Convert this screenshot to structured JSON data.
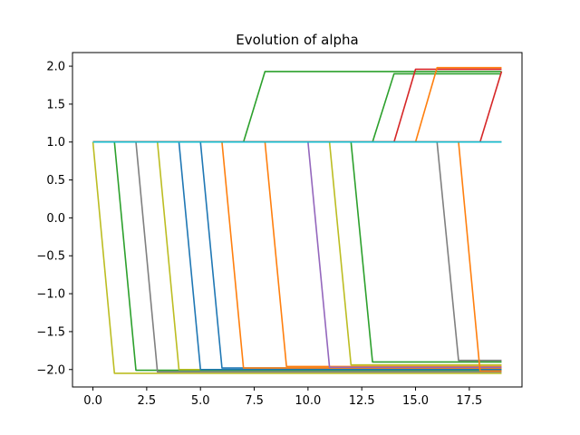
{
  "chart_data": {
    "type": "line",
    "title": "Evolution of alpha",
    "xlabel": "",
    "ylabel": "",
    "xlim": [
      -0.95,
      19.95
    ],
    "ylim": [
      -2.23,
      2.18
    ],
    "xticks": [
      0.0,
      2.5,
      5.0,
      7.5,
      10.0,
      12.5,
      15.0,
      17.5
    ],
    "xtick_labels": [
      "0.0",
      "2.5",
      "5.0",
      "7.5",
      "10.0",
      "12.5",
      "15.0",
      "17.5"
    ],
    "yticks": [
      2.0,
      1.5,
      1.0,
      0.5,
      0.0,
      -0.5,
      -1.0,
      -1.5,
      -2.0
    ],
    "ytick_labels": [
      "2.0",
      "1.5",
      "1.0",
      "0.5",
      "0.0",
      "−0.5",
      "−1.0",
      "−1.5",
      "−2.0"
    ],
    "grid": false,
    "x": [
      0,
      1,
      2,
      3,
      4,
      5,
      6,
      7,
      8,
      9,
      10,
      11,
      12,
      13,
      14,
      15,
      16,
      17,
      18,
      19
    ],
    "series": [
      {
        "color": "#bcbd22",
        "values": [
          1,
          -2.05,
          -2.05,
          -2.05,
          -2.05,
          -2.05,
          -2.05,
          -2.05,
          -2.05,
          -2.05,
          -2.05,
          -2.05,
          -2.05,
          -2.05,
          -2.05,
          -2.05,
          -2.05,
          -2.05,
          -2.05,
          -2.05
        ]
      },
      {
        "color": "#2ca02c",
        "values": [
          1,
          1,
          -2.01,
          -2.01,
          -2.01,
          -2.01,
          -2.01,
          -2.01,
          -2.01,
          -2.01,
          -2.01,
          -2.01,
          -2.01,
          -2.01,
          -2.01,
          -2.01,
          -2.01,
          -2.01,
          -2.01,
          -2.01
        ]
      },
      {
        "color": "#7f7f7f",
        "values": [
          1,
          1,
          1,
          -2.03,
          -2.03,
          -2.03,
          -2.03,
          -2.03,
          -2.03,
          -2.03,
          -2.03,
          -2.03,
          -2.03,
          -2.03,
          -2.03,
          -2.03,
          -2.03,
          -2.03,
          -2.03,
          -2.03
        ]
      },
      {
        "color": "#bcbd22",
        "values": [
          1,
          1,
          1,
          1,
          -2.0,
          -2.0,
          -2.0,
          -2.0,
          -2.0,
          -2.0,
          -2.0,
          -2.0,
          -2.0,
          -2.0,
          -2.0,
          -2.0,
          -2.0,
          -2.0,
          -2.0,
          -2.0
        ]
      },
      {
        "color": "#1f77b4",
        "values": [
          1,
          1,
          1,
          1,
          1,
          -2.0,
          -2.0,
          -2.0,
          -2.0,
          -2.0,
          -2.0,
          -2.0,
          -2.0,
          -2.0,
          -2.0,
          -2.0,
          -2.0,
          -2.0,
          -2.0,
          -2.0
        ]
      },
      {
        "color": "#1f77b4",
        "values": [
          1,
          1,
          1,
          1,
          1,
          1,
          -1.98,
          -1.98,
          -1.98,
          -1.98,
          -1.98,
          -1.98,
          -1.98,
          -1.98,
          -1.98,
          -1.98,
          -1.98,
          -1.98,
          -1.98,
          -1.98
        ]
      },
      {
        "color": "#ff7f0e",
        "values": [
          1,
          1,
          1,
          1,
          1,
          1,
          1,
          -1.98,
          -1.98,
          -1.98,
          -1.98,
          -1.98,
          -1.98,
          -1.98,
          -1.98,
          -1.98,
          -1.98,
          -1.98,
          -1.98,
          -1.98
        ]
      },
      {
        "color": "#ff7f0e",
        "values": [
          1,
          1,
          1,
          1,
          1,
          1,
          1,
          1,
          1,
          -1.96,
          -1.96,
          -1.96,
          -1.96,
          -1.96,
          -1.96,
          -1.96,
          -1.96,
          -1.96,
          -1.96,
          -1.96
        ]
      },
      {
        "color": "#9467bd",
        "values": [
          1,
          1,
          1,
          1,
          1,
          1,
          1,
          1,
          1,
          1,
          1,
          -1.97,
          -1.97,
          -1.97,
          -1.97,
          -1.97,
          -1.97,
          -1.97,
          -1.97,
          -1.97
        ]
      },
      {
        "color": "#bcbd22",
        "values": [
          1,
          1,
          1,
          1,
          1,
          1,
          1,
          1,
          1,
          1,
          1,
          1,
          -1.94,
          -1.94,
          -1.94,
          -1.94,
          -1.94,
          -1.94,
          -1.94,
          -1.94
        ]
      },
      {
        "color": "#2ca02c",
        "values": [
          1,
          1,
          1,
          1,
          1,
          1,
          1,
          1,
          1,
          1,
          1,
          1,
          1,
          -1.9,
          -1.9,
          -1.9,
          -1.9,
          -1.9,
          -1.9,
          -1.9
        ]
      },
      {
        "color": "#7f7f7f",
        "values": [
          1,
          1,
          1,
          1,
          1,
          1,
          1,
          1,
          1,
          1,
          1,
          1,
          1,
          1,
          1,
          1,
          1,
          -1.88,
          -1.88,
          -1.88
        ]
      },
      {
        "color": "#ff7f0e",
        "values": [
          1,
          1,
          1,
          1,
          1,
          1,
          1,
          1,
          1,
          1,
          1,
          1,
          1,
          1,
          1,
          1,
          1,
          1,
          -2.02,
          -2.02
        ]
      },
      {
        "color": "#2ca02c",
        "values": [
          1,
          1,
          1,
          1,
          1,
          1,
          1,
          1,
          1.93,
          1.93,
          1.93,
          1.93,
          1.93,
          1.93,
          1.93,
          1.93,
          1.93,
          1.93,
          1.93,
          1.93
        ]
      },
      {
        "color": "#2ca02c",
        "values": [
          1,
          1,
          1,
          1,
          1,
          1,
          1,
          1,
          1,
          1,
          1,
          1,
          1,
          1,
          1.9,
          1.9,
          1.9,
          1.9,
          1.9,
          1.9
        ]
      },
      {
        "color": "#d62728",
        "values": [
          1,
          1,
          1,
          1,
          1,
          1,
          1,
          1,
          1,
          1,
          1,
          1,
          1,
          1,
          1,
          1.96,
          1.96,
          1.96,
          1.96,
          1.96
        ]
      },
      {
        "color": "#ff7f0e",
        "values": [
          1,
          1,
          1,
          1,
          1,
          1,
          1,
          1,
          1,
          1,
          1,
          1,
          1,
          1,
          1,
          1,
          1.98,
          1.98,
          1.98,
          1.98
        ]
      },
      {
        "color": "#d62728",
        "values": [
          1,
          1,
          1,
          1,
          1,
          1,
          1,
          1,
          1,
          1,
          1,
          1,
          1,
          1,
          1,
          1,
          1,
          1,
          1,
          1.93
        ]
      },
      {
        "color": "#8c564b",
        "values": [
          1,
          1,
          1,
          1,
          1,
          1,
          1,
          1,
          1,
          1,
          1,
          1,
          1,
          1,
          1,
          1,
          1,
          1,
          1,
          1
        ]
      },
      {
        "color": "#e377c2",
        "values": [
          1,
          1,
          1,
          1,
          1,
          1,
          1,
          1,
          1,
          1,
          1,
          1,
          1,
          1,
          1,
          1,
          1,
          1,
          1,
          1
        ]
      },
      {
        "color": "#7f7f7f",
        "values": [
          1,
          1,
          1,
          1,
          1,
          1,
          1,
          1,
          1,
          1,
          1,
          1,
          1,
          1,
          1,
          1,
          1,
          1,
          1,
          1
        ]
      },
      {
        "color": "#17becf",
        "values": [
          1,
          1,
          1,
          1,
          1,
          1,
          1,
          1,
          1,
          1,
          1,
          1,
          1,
          1,
          1,
          1,
          1,
          1,
          1,
          1
        ]
      }
    ]
  }
}
